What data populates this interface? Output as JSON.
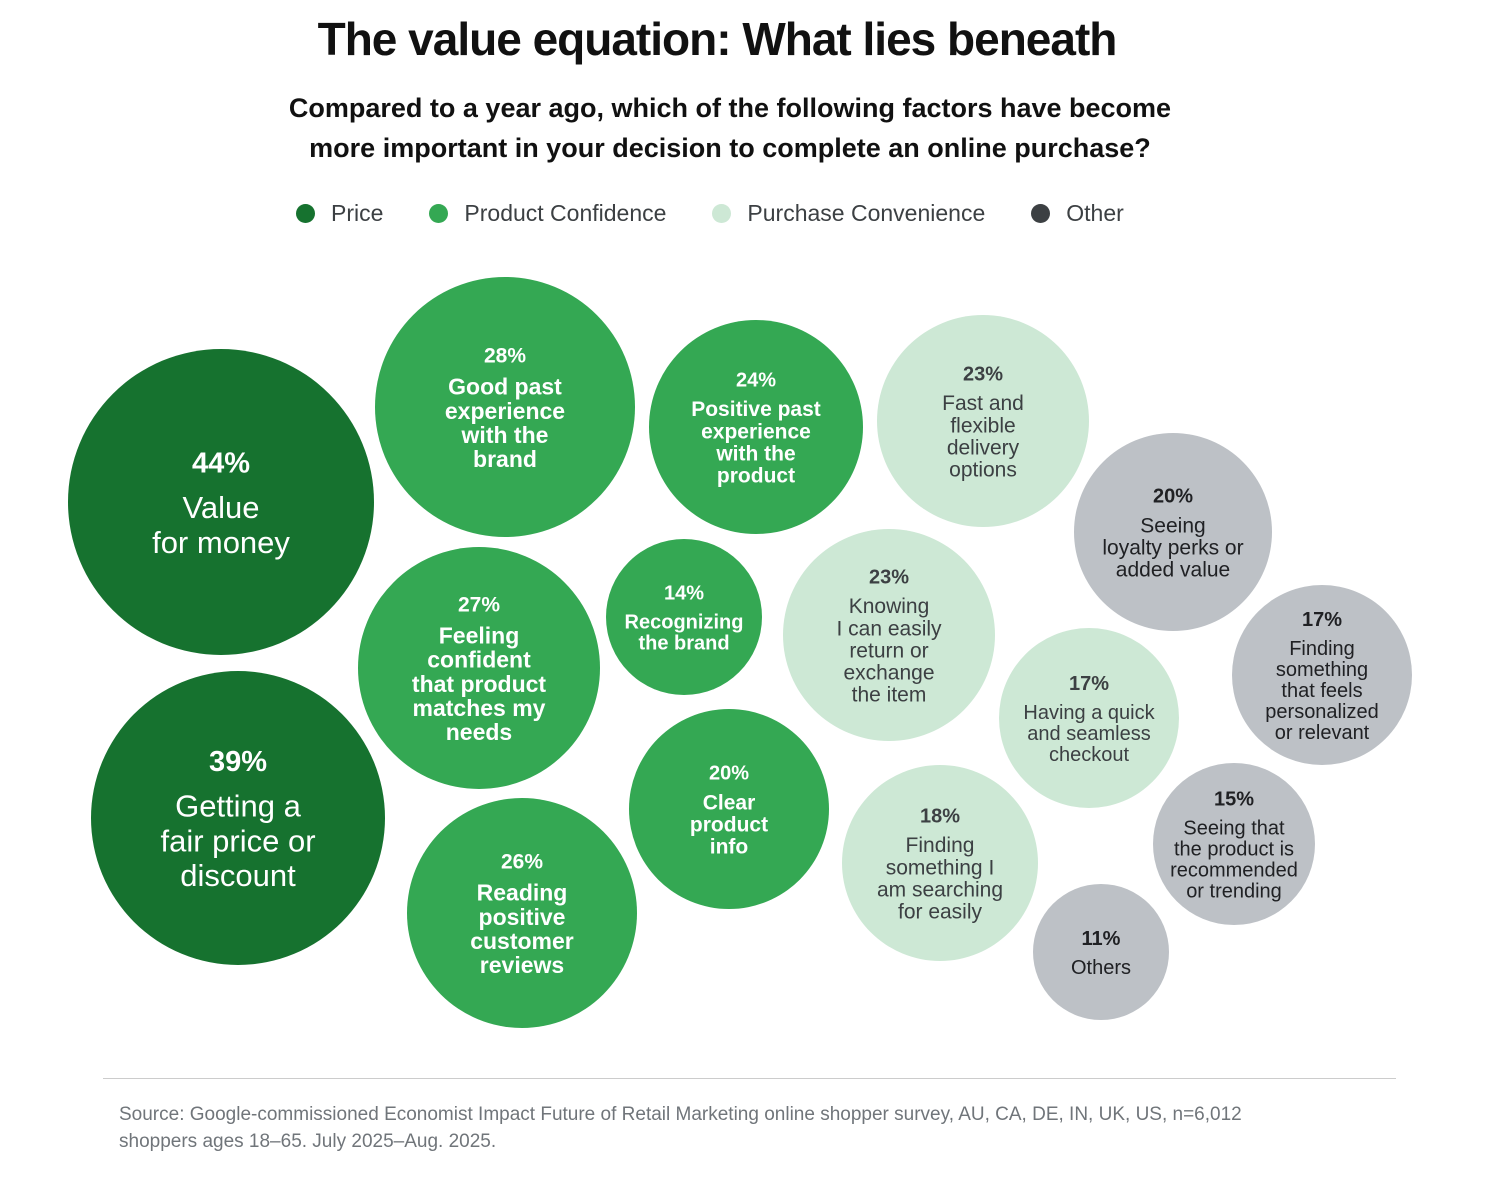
{
  "chart_data": {
    "type": "bubble",
    "title": "The value equation: What lies beneath",
    "subtitle_lines": [
      "Compared to a year ago, which of the following factors have become",
      "more important in your decision to complete an online purchase?"
    ],
    "legend": [
      {
        "name": "Price",
        "color": "#16722f"
      },
      {
        "name": "Product Confidence",
        "color": "#34a853"
      },
      {
        "name": "Purchase Convenience",
        "color": "#cde8d5"
      },
      {
        "name": "Other",
        "color": "#3c4043"
      }
    ],
    "category_colors": {
      "Price": "#16722f",
      "Product Confidence": "#34a853",
      "Purchase Convenience": "#cde8d5",
      "Other": "#bdc1c6"
    },
    "points": [
      {
        "value": "44%",
        "pct": 44,
        "category": "Price",
        "label": [
          "Value",
          "for money"
        ]
      },
      {
        "value": "39%",
        "pct": 39,
        "category": "Price",
        "label": [
          "Getting a",
          "fair price or",
          "discount"
        ]
      },
      {
        "value": "28%",
        "pct": 28,
        "category": "Product Confidence",
        "label": [
          "Good past",
          "experience",
          "with the",
          "brand"
        ]
      },
      {
        "value": "27%",
        "pct": 27,
        "category": "Product Confidence",
        "label": [
          "Feeling",
          "confident",
          "that product",
          "matches my",
          "needs"
        ]
      },
      {
        "value": "26%",
        "pct": 26,
        "category": "Product Confidence",
        "label": [
          "Reading",
          "positive",
          "customer",
          "reviews"
        ]
      },
      {
        "value": "24%",
        "pct": 24,
        "category": "Product Confidence",
        "label": [
          "Positive past",
          "experience",
          "with the",
          "product"
        ]
      },
      {
        "value": "14%",
        "pct": 14,
        "category": "Product Confidence",
        "label": [
          "Recognizing",
          "the brand"
        ]
      },
      {
        "value": "20%",
        "pct": 20,
        "category": "Product Confidence",
        "label": [
          "Clear",
          "product",
          "info"
        ]
      },
      {
        "value": "23%",
        "pct": 23,
        "category": "Purchase Convenience",
        "label": [
          "Fast and",
          "flexible",
          "delivery",
          "options"
        ]
      },
      {
        "value": "23%",
        "pct": 23,
        "category": "Purchase Convenience",
        "label": [
          "Knowing",
          "I can easily",
          "return or",
          "exchange",
          "the item"
        ]
      },
      {
        "value": "17%",
        "pct": 17,
        "category": "Purchase Convenience",
        "label": [
          "Having a quick",
          "and seamless",
          "checkout"
        ]
      },
      {
        "value": "18%",
        "pct": 18,
        "category": "Purchase Convenience",
        "label": [
          "Finding",
          "something I",
          "am searching",
          "for easily"
        ]
      },
      {
        "value": "20%",
        "pct": 20,
        "category": "Other",
        "label": [
          "Seeing",
          "loyalty perks or",
          "added value"
        ]
      },
      {
        "value": "17%",
        "pct": 17,
        "category": "Other",
        "label": [
          "Finding",
          "something",
          "that feels",
          "personalized",
          "or relevant"
        ]
      },
      {
        "value": "15%",
        "pct": 15,
        "category": "Other",
        "label": [
          "Seeing that",
          "the product is",
          "recommended",
          "or trending"
        ]
      },
      {
        "value": "11%",
        "pct": 11,
        "category": "Other",
        "label": [
          "Others"
        ]
      }
    ]
  },
  "source_lines": [
    "Source: Google-commissioned Economist Impact Future of Retail Marketing online shopper survey, AU, CA, DE, IN, UK, US, n=6,012",
    "shoppers ages 18–65. July 2025–Aug. 2025."
  ]
}
